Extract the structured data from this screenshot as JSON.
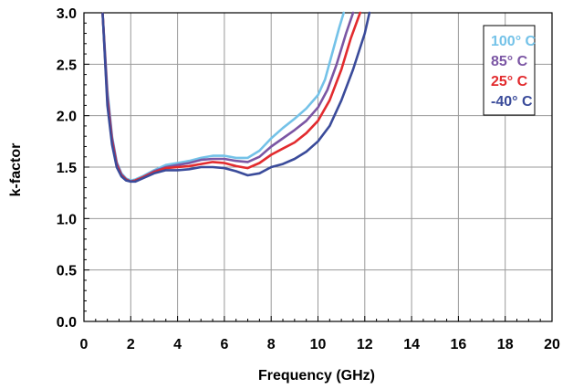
{
  "chart_data": {
    "type": "line",
    "title": "",
    "xlabel": "Frequency (GHz)",
    "ylabel": "k-factor",
    "xlim": [
      0,
      20
    ],
    "ylim": [
      0.0,
      3.0
    ],
    "x_ticks": [
      0,
      2,
      4,
      6,
      8,
      10,
      12,
      14,
      16,
      18,
      20
    ],
    "y_ticks": [
      0.0,
      0.5,
      1.0,
      1.5,
      2.0,
      2.5,
      3.0
    ],
    "x_tick_labels": [
      "0",
      "2",
      "4",
      "6",
      "8",
      "10",
      "12",
      "14",
      "16",
      "18",
      "20"
    ],
    "y_tick_labels": [
      "0.0",
      "0.5",
      "1.0",
      "1.5",
      "2.0",
      "2.5",
      "3.0"
    ],
    "grid": true,
    "legend_position": "top-right",
    "series": [
      {
        "name": "100° C",
        "color": "#74c2e8",
        "x": [
          0.8,
          1.0,
          1.2,
          1.4,
          1.6,
          1.8,
          2.0,
          2.2,
          2.5,
          3.0,
          3.5,
          4.0,
          4.5,
          5.0,
          5.5,
          6.0,
          6.5,
          7.0,
          7.5,
          8.0,
          8.5,
          9.0,
          9.5,
          10.0,
          10.3,
          10.6,
          10.9,
          11.1
        ],
        "values": [
          2.99,
          2.25,
          1.8,
          1.55,
          1.44,
          1.39,
          1.37,
          1.38,
          1.41,
          1.47,
          1.52,
          1.54,
          1.56,
          1.59,
          1.61,
          1.61,
          1.59,
          1.59,
          1.66,
          1.78,
          1.88,
          1.97,
          2.07,
          2.2,
          2.35,
          2.6,
          2.85,
          3.0
        ]
      },
      {
        "name": "85° C",
        "color": "#7b56a4",
        "x": [
          0.8,
          1.0,
          1.2,
          1.4,
          1.6,
          1.8,
          2.0,
          2.2,
          2.5,
          3.0,
          3.5,
          4.0,
          4.5,
          5.0,
          5.5,
          6.0,
          6.5,
          7.0,
          7.5,
          8.0,
          8.5,
          9.0,
          9.5,
          10.0,
          10.4,
          10.8,
          11.2,
          11.5
        ],
        "values": [
          2.99,
          2.2,
          1.78,
          1.54,
          1.43,
          1.38,
          1.36,
          1.37,
          1.4,
          1.46,
          1.5,
          1.52,
          1.54,
          1.57,
          1.58,
          1.58,
          1.56,
          1.55,
          1.6,
          1.7,
          1.78,
          1.86,
          1.95,
          2.08,
          2.25,
          2.5,
          2.8,
          3.0
        ]
      },
      {
        "name": "25° C",
        "color": "#e22b2e",
        "x": [
          0.8,
          1.0,
          1.2,
          1.4,
          1.6,
          1.8,
          2.0,
          2.2,
          2.5,
          3.0,
          3.5,
          4.0,
          4.5,
          5.0,
          5.5,
          6.0,
          6.5,
          7.0,
          7.5,
          8.0,
          8.5,
          9.0,
          9.5,
          10.0,
          10.5,
          11.0,
          11.4,
          11.8
        ],
        "values": [
          2.99,
          2.15,
          1.75,
          1.52,
          1.42,
          1.38,
          1.36,
          1.37,
          1.4,
          1.45,
          1.49,
          1.5,
          1.51,
          1.53,
          1.55,
          1.54,
          1.51,
          1.49,
          1.54,
          1.62,
          1.68,
          1.74,
          1.83,
          1.95,
          2.15,
          2.45,
          2.75,
          3.0
        ]
      },
      {
        "name": "-40° C",
        "color": "#3a4b9a",
        "x": [
          0.8,
          1.0,
          1.2,
          1.4,
          1.6,
          1.8,
          2.0,
          2.2,
          2.5,
          3.0,
          3.5,
          4.0,
          4.5,
          5.0,
          5.5,
          6.0,
          6.5,
          7.0,
          7.5,
          8.0,
          8.5,
          9.0,
          9.5,
          10.0,
          10.5,
          11.0,
          11.5,
          12.0,
          12.2
        ],
        "values": [
          2.99,
          2.1,
          1.72,
          1.5,
          1.41,
          1.37,
          1.36,
          1.36,
          1.39,
          1.44,
          1.47,
          1.47,
          1.48,
          1.5,
          1.5,
          1.49,
          1.46,
          1.42,
          1.44,
          1.5,
          1.53,
          1.58,
          1.65,
          1.75,
          1.9,
          2.15,
          2.45,
          2.8,
          3.0
        ]
      }
    ]
  }
}
